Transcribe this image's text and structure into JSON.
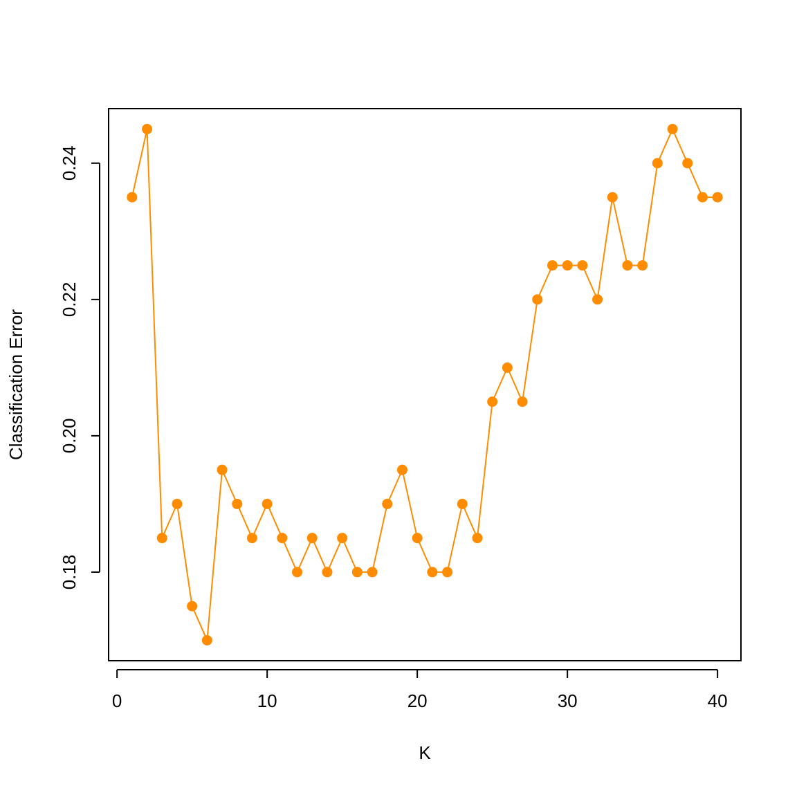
{
  "chart_data": {
    "type": "line",
    "x_label": "K",
    "y_label": "Classification Error",
    "x": [
      1,
      2,
      3,
      4,
      5,
      6,
      7,
      8,
      9,
      10,
      11,
      12,
      13,
      14,
      15,
      16,
      17,
      18,
      19,
      20,
      21,
      22,
      23,
      24,
      25,
      26,
      27,
      28,
      29,
      30,
      31,
      32,
      33,
      34,
      35,
      36,
      37,
      38,
      39,
      40
    ],
    "series": [
      {
        "color": "#ff8c00",
        "values": [
          0.235,
          0.245,
          0.185,
          0.19,
          0.175,
          0.17,
          0.195,
          0.19,
          0.185,
          0.19,
          0.185,
          0.18,
          0.185,
          0.18,
          0.185,
          0.18,
          0.18,
          0.19,
          0.195,
          0.185,
          0.18,
          0.18,
          0.19,
          0.185,
          0.205,
          0.21,
          0.205,
          0.22,
          0.225,
          0.225,
          0.225,
          0.22,
          0.235,
          0.225,
          0.225,
          0.24,
          0.245,
          0.24,
          0.235,
          0.235
        ]
      }
    ],
    "xlim": [
      -0.56,
      41.56
    ],
    "xticks": [
      0,
      10,
      20,
      30,
      40
    ],
    "ylim": [
      0.167,
      0.248
    ],
    "yticks": [
      0.18,
      {
        "value": 0.2,
        "label": "0.20"
      },
      0.22,
      0.24
    ]
  }
}
